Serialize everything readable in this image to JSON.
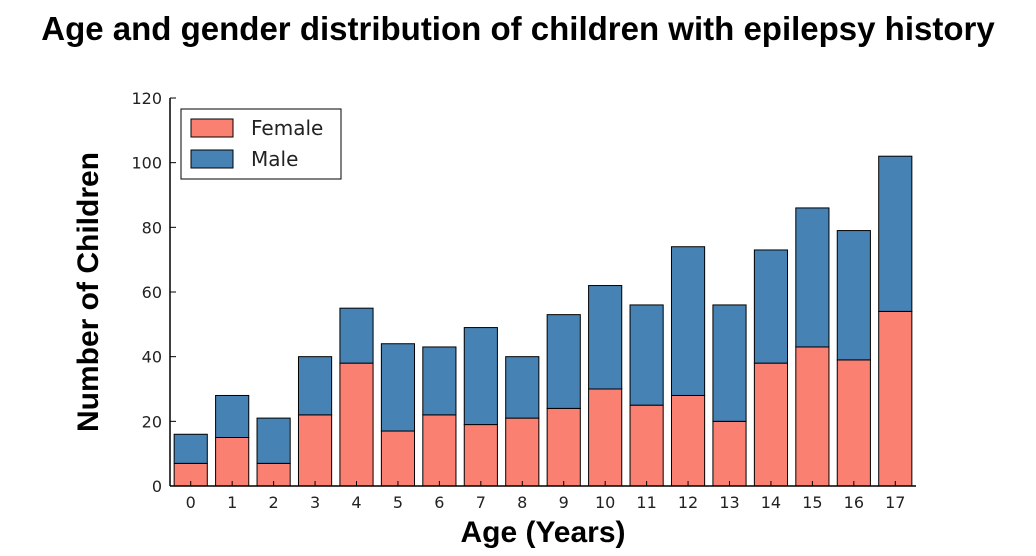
{
  "chart_data": {
    "type": "bar",
    "stacked": true,
    "title": "Age and gender distribution of children with epilepsy history",
    "xlabel": "Age (Years)",
    "ylabel": "Number of Children",
    "categories": [
      "0",
      "1",
      "2",
      "3",
      "4",
      "5",
      "6",
      "7",
      "8",
      "9",
      "10",
      "11",
      "12",
      "13",
      "14",
      "15",
      "16",
      "17"
    ],
    "series": [
      {
        "name": "Female",
        "color": "#fa8072",
        "values": [
          7,
          15,
          7,
          22,
          38,
          17,
          22,
          19,
          21,
          24,
          30,
          25,
          28,
          20,
          38,
          43,
          39,
          54
        ]
      },
      {
        "name": "Male",
        "color": "#4682b4",
        "values": [
          9,
          13,
          14,
          18,
          17,
          27,
          21,
          30,
          19,
          29,
          32,
          31,
          46,
          36,
          35,
          43,
          40,
          48
        ]
      }
    ],
    "ylim": [
      0,
      120
    ],
    "yticks": [
      "0",
      "20",
      "40",
      "60",
      "80",
      "100",
      "120"
    ],
    "grid": false,
    "legend_position": "top-left"
  }
}
